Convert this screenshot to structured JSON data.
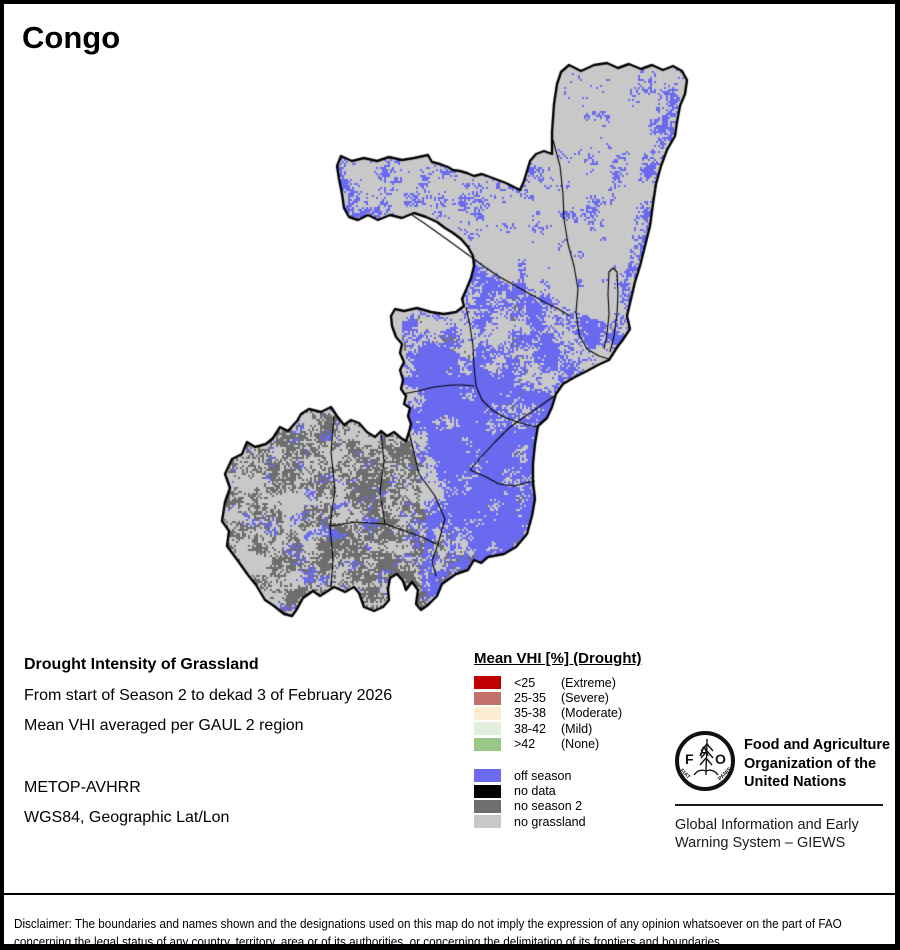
{
  "title": "Congo",
  "info": {
    "heading": "Drought Intensity of Grassland",
    "period": "From start of Season 2 to dekad 3 of February 2026",
    "method": "Mean VHI averaged per GAUL 2 region",
    "sensor": "METOP-AVHRR",
    "projection": "WGS84, Geographic Lat/Lon"
  },
  "legend": {
    "title": "Mean VHI [%] (Drought)",
    "vhi_classes": [
      {
        "label": "<25",
        "qualifier": "(Extreme)",
        "color": "#c00000"
      },
      {
        "label": "25-35",
        "qualifier": "(Severe)",
        "color": "#c4706a"
      },
      {
        "label": "35-38",
        "qualifier": "(Moderate)",
        "color": "#fcecd0"
      },
      {
        "label": "38-42",
        "qualifier": "(Mild)",
        "color": "#e2efdd"
      },
      {
        "label": ">42",
        "qualifier": "(None)",
        "color": "#98c787"
      }
    ],
    "season_classes": [
      {
        "label": "off season",
        "color": "#6a6af0"
      },
      {
        "label": "no data",
        "color": "#000000"
      },
      {
        "label": "no season 2",
        "color": "#6e6e6e"
      },
      {
        "label": "no grassland",
        "color": "#c8c8c8"
      }
    ]
  },
  "footer": {
    "org_lines": [
      "Food and Agriculture",
      "Organization of the",
      "United Nations"
    ],
    "giews_lines": [
      "Global Information and Early",
      "Warning System – GIEWS"
    ],
    "logo": {
      "f": "F",
      "a": "A",
      "o": "O",
      "motto_left": "FIAT",
      "motto_right": "PANIS"
    }
  },
  "disclaimer": {
    "line1": "Disclaimer: The boundaries and names shown and the designations used on this map do not imply the expression of any opinion whatsoever on the part of FAO",
    "line2": "concerning the legal status of any country, territory, area or of its authorities, or concerning the delimitation of its frontiers and boundaries."
  },
  "map": {
    "colors": {
      "no_grassland": "#c8c8c8",
      "off_season": "#6a6af0",
      "no_season2": "#6e6e6e",
      "no_data": "#000000",
      "border": "#000000"
    }
  }
}
